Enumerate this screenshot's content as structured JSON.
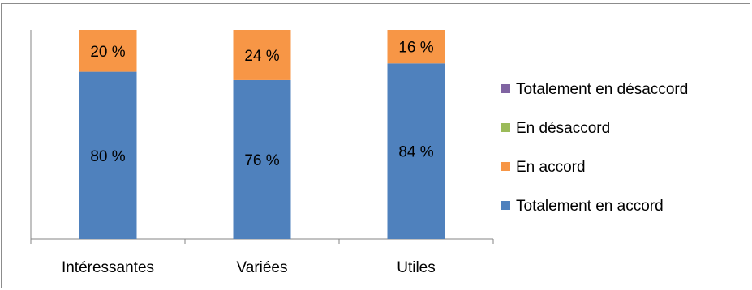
{
  "chart_data": {
    "type": "bar",
    "stacked": true,
    "percent_stacked": true,
    "categories": [
      "Intéressantes",
      "Variées",
      "Utiles"
    ],
    "series": [
      {
        "name": "Totalement en accord",
        "values": [
          80,
          76,
          84
        ],
        "color": "#4F81BD",
        "labels": [
          "80 %",
          "76 %",
          "84 %"
        ]
      },
      {
        "name": "En accord",
        "values": [
          20,
          24,
          16
        ],
        "color": "#F79646",
        "labels": [
          "20 %",
          "24 %",
          "16 %"
        ]
      },
      {
        "name": "En désaccord",
        "values": [
          0,
          0,
          0
        ],
        "color": "#9BBB59",
        "labels": [
          "",
          "",
          ""
        ]
      },
      {
        "name": "Totalement en désaccord",
        "values": [
          0,
          0,
          0
        ],
        "color": "#8064A2",
        "labels": [
          "",
          "",
          ""
        ]
      }
    ],
    "legend_order": [
      "Totalement en désaccord",
      "En désaccord",
      "En accord",
      "Totalement en accord"
    ],
    "legend_position": "right",
    "ylim": [
      0,
      100
    ],
    "grid": false,
    "y_tick_labels_shown": false
  }
}
